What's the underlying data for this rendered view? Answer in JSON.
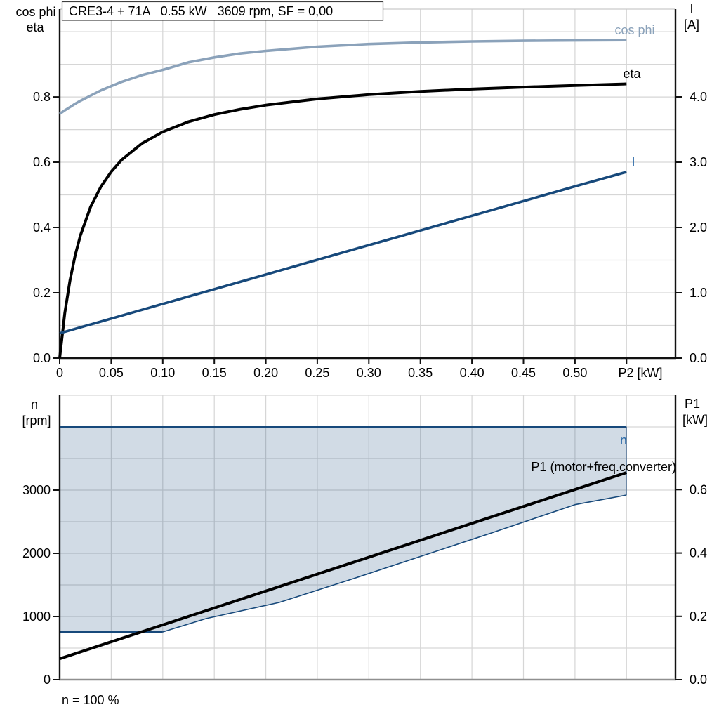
{
  "page": {
    "background": "#FFFFFF"
  },
  "colors": {
    "dark_blue": "#17497B",
    "light_blue": "#8BA2BA",
    "label_blue": "#2566A5",
    "black": "#000000",
    "grid": "#D6D6D6",
    "bottom_x_axis": "#8F8F8F",
    "area_fill": "rgba(23,73,123,0.2)"
  },
  "chart_data": [
    {
      "type": "line",
      "title": "CRE3-4 + 71A   0.55 kW   3609 rpm, SF = 0,00",
      "x_axis": {
        "label": "P2 [kW]",
        "min": 0,
        "max": 0.5975,
        "grid_step": 0.05,
        "ticks": [
          {
            "v": 0,
            "label": "0"
          },
          {
            "v": 0.05,
            "label": "0.05"
          },
          {
            "v": 0.1,
            "label": "0.10"
          },
          {
            "v": 0.15,
            "label": "0.15"
          },
          {
            "v": 0.2,
            "label": "0.20"
          },
          {
            "v": 0.25,
            "label": "0.25"
          },
          {
            "v": 0.3,
            "label": "0.30"
          },
          {
            "v": 0.35,
            "label": "0.35"
          },
          {
            "v": 0.4,
            "label": "0.40"
          },
          {
            "v": 0.45,
            "label": "0.45"
          },
          {
            "v": 0.5,
            "label": "0.50"
          }
        ],
        "minor_ticks": [
          0.55
        ]
      },
      "left_axis": {
        "header_line1": "cos phi",
        "header_line2": "eta",
        "min": 0,
        "max": 1.069,
        "grid_step": 0.1,
        "ticks": [
          {
            "v": 0,
            "label": "0.0"
          },
          {
            "v": 0.2,
            "label": "0.2"
          },
          {
            "v": 0.4,
            "label": "0.4"
          },
          {
            "v": 0.6,
            "label": "0.6"
          },
          {
            "v": 0.8,
            "label": "0.8"
          }
        ]
      },
      "right_axis": {
        "header_line1": "I",
        "header_line2": "[A]",
        "min": 0,
        "max": 5.344,
        "ticks": [
          {
            "v": 0,
            "label": "0.0"
          },
          {
            "v": 1,
            "label": "1.0"
          },
          {
            "v": 2,
            "label": "2.0"
          },
          {
            "v": 3,
            "label": "3.0"
          },
          {
            "v": 4,
            "label": "4.0"
          }
        ]
      },
      "series": [
        {
          "name": "cos phi",
          "axis": "left",
          "color": "#8BA2BA",
          "width": 3.6,
          "label_color": "#8BA2BA",
          "points": [
            [
              0,
              0.748
            ],
            [
              0.005,
              0.759
            ],
            [
              0.01,
              0.769
            ],
            [
              0.015,
              0.779
            ],
            [
              0.02,
              0.788
            ],
            [
              0.03,
              0.804
            ],
            [
              0.04,
              0.82
            ],
            [
              0.05,
              0.833
            ],
            [
              0.06,
              0.846
            ],
            [
              0.08,
              0.867
            ],
            [
              0.1,
              0.883
            ],
            [
              0.125,
              0.906
            ],
            [
              0.15,
              0.921
            ],
            [
              0.175,
              0.933
            ],
            [
              0.2,
              0.941
            ],
            [
              0.25,
              0.954
            ],
            [
              0.3,
              0.962
            ],
            [
              0.35,
              0.967
            ],
            [
              0.4,
              0.97
            ],
            [
              0.45,
              0.972
            ],
            [
              0.5,
              0.973
            ],
            [
              0.55,
              0.974
            ]
          ]
        },
        {
          "name": "eta",
          "axis": "left",
          "color": "#000000",
          "width": 4,
          "label_color": "#000000",
          "points": [
            [
              0,
              0
            ],
            [
              0.005,
              0.138
            ],
            [
              0.01,
              0.238
            ],
            [
              0.015,
              0.314
            ],
            [
              0.02,
              0.375
            ],
            [
              0.03,
              0.463
            ],
            [
              0.04,
              0.525
            ],
            [
              0.05,
              0.571
            ],
            [
              0.06,
              0.607
            ],
            [
              0.08,
              0.658
            ],
            [
              0.1,
              0.693
            ],
            [
              0.125,
              0.724
            ],
            [
              0.15,
              0.746
            ],
            [
              0.175,
              0.762
            ],
            [
              0.2,
              0.775
            ],
            [
              0.25,
              0.794
            ],
            [
              0.3,
              0.807
            ],
            [
              0.35,
              0.817
            ],
            [
              0.4,
              0.824
            ],
            [
              0.45,
              0.83
            ],
            [
              0.5,
              0.835
            ],
            [
              0.55,
              0.84
            ]
          ]
        },
        {
          "name": "I",
          "axis": "right",
          "color": "#17497B",
          "width": 3.6,
          "label_color": "#2566A5",
          "points": [
            [
              0,
              0.38
            ],
            [
              0.1,
              0.83
            ],
            [
              0.2,
              1.28
            ],
            [
              0.3,
              1.73
            ],
            [
              0.4,
              2.18
            ],
            [
              0.5,
              2.63
            ],
            [
              0.55,
              2.85
            ]
          ]
        }
      ]
    },
    {
      "type": "line",
      "x_axis": {
        "min": 0,
        "max": 0.5975,
        "grid_step": 0.05
      },
      "left_axis": {
        "header_line1": "n",
        "header_line2": "[rpm]",
        "min": 0,
        "max": 4511,
        "grid_step": 500,
        "ticks": [
          {
            "v": 0,
            "label": "0"
          },
          {
            "v": 1000,
            "label": "1000"
          },
          {
            "v": 2000,
            "label": "2000"
          },
          {
            "v": 3000,
            "label": "3000"
          }
        ]
      },
      "right_axis": {
        "header_line1": "P1",
        "header_line2": "[kW]",
        "min": 0,
        "max": 0.9,
        "ticks": [
          {
            "v": 0,
            "label": "0.0"
          },
          {
            "v": 0.2,
            "label": "0.2"
          },
          {
            "v": 0.4,
            "label": "0.4"
          },
          {
            "v": 0.6,
            "label": "0.6"
          }
        ]
      },
      "area": {
        "top_n": 4000,
        "x_end": 0.55,
        "fill": "rgba(23,73,123,0.2)",
        "lower_boundary": [
          [
            0,
            756
          ],
          [
            0.1,
            756
          ],
          [
            0.142,
            967
          ],
          [
            0.213,
            1222
          ],
          [
            0.283,
            1589
          ],
          [
            0.351,
            1956
          ],
          [
            0.419,
            2322
          ],
          [
            0.5,
            2770
          ],
          [
            0.55,
            2922
          ]
        ]
      },
      "series": [
        {
          "name": "n",
          "axis": "left",
          "color": "#17497B",
          "width": 4,
          "label_color": "#2566A5",
          "points": [
            [
              0,
              4000
            ],
            [
              0.55,
              4000
            ]
          ]
        },
        {
          "name": "P1 (motor+freq.converter)",
          "axis": "right",
          "color": "#000000",
          "width": 4,
          "label_color": "#000000",
          "points": [
            [
              0,
              0.066
            ],
            [
              0.55,
              0.654
            ]
          ]
        }
      ],
      "footnote": "n = 100 %"
    }
  ]
}
